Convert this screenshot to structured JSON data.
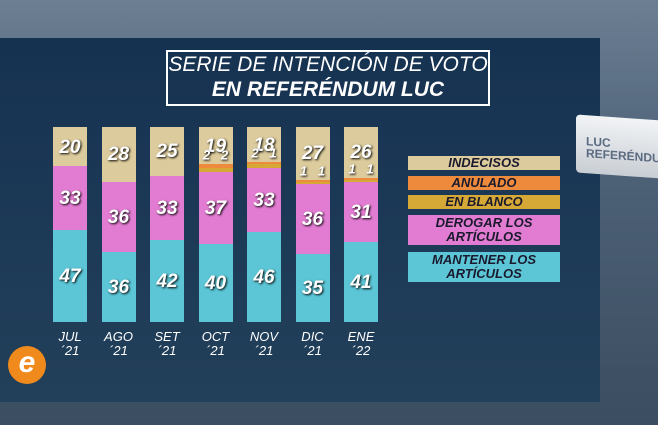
{
  "chart_data": {
    "type": "stacked_bar",
    "title": "SERIE DE INTENCIÓN DE VOTO",
    "subtitle": "EN REFERÉNDUM LUC",
    "categories": [
      "JUL\n´21",
      "AGO\n´21",
      "SET\n´21",
      "OCT\n´21",
      "NOV\n´21",
      "DIC\n´21",
      "ENE\n´22"
    ],
    "series": [
      {
        "name": "MANTENER LOS ARTÍCULOS",
        "color": "#5cc6d6",
        "values": [
          47,
          36,
          42,
          40,
          46,
          35,
          41
        ]
      },
      {
        "name": "DEROGAR LOS ARTÍCULOS",
        "color": "#e27cd2",
        "values": [
          33,
          36,
          33,
          37,
          33,
          36,
          31
        ]
      },
      {
        "name": "EN BLANCO",
        "color": "#d6a936",
        "values": [
          null,
          null,
          null,
          2,
          2,
          1,
          1
        ]
      },
      {
        "name": "ANULADO",
        "color": "#ee8a3c",
        "values": [
          null,
          null,
          null,
          2,
          1,
          1,
          1
        ]
      },
      {
        "name": "INDECISOS",
        "color": "#dccb9c",
        "values": [
          20,
          28,
          25,
          19,
          18,
          27,
          26
        ]
      }
    ],
    "ylim": [
      0,
      100
    ],
    "decoration": {
      "box_top": "LUC",
      "box_bottom": "REFERÉNDUM",
      "logo": "e"
    }
  }
}
